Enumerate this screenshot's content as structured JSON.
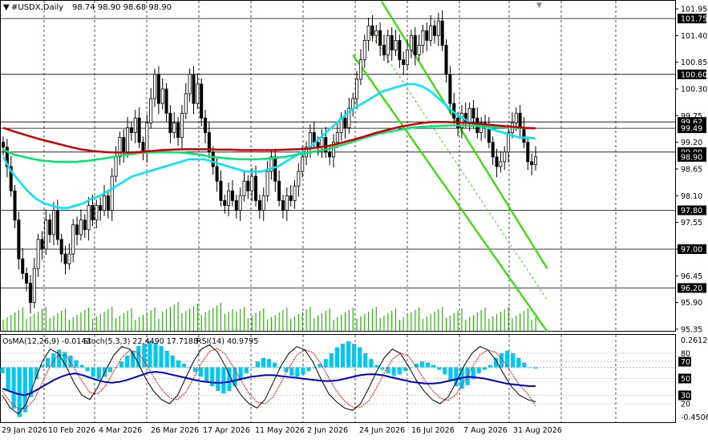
{
  "header": {
    "title": "#USDX,Daily",
    "ohlc": "98.74 98.90 98.68 98.90"
  },
  "indicator_header": {
    "osma": "OsMA(12,26,9) -0.0143",
    "stoch": "Stoch(5,3,3) 22.4490 17.7188",
    "rsi": "RSI(14) 40.9795"
  },
  "colors": {
    "background": "#ffffff",
    "bull_candle": "#000000",
    "bear_candle": "#000000",
    "ma_fast": "#00e5ff",
    "ma_mid": "#00e676",
    "ma_slow": "#cc0000",
    "channel": "#33dd00",
    "osma_hist": "#00c8f0",
    "rsi": "#0000cc",
    "stoch_main": "#000000",
    "stoch_signal": "#ff0000",
    "volume": "#22bb00",
    "level_line": "#000000",
    "price_tag": "#000000"
  },
  "chart_data": [
    {
      "type": "line",
      "title": "#USDX,Daily",
      "x_labels": [
        "29 Jan 2026",
        "10 Feb 2026",
        "4 Mar 2026",
        "26 Mar 2026",
        "17 Apr 2026",
        "11 May 2026",
        "2 Jun 2026",
        "24 Jun 2026",
        "16 Jul 2026",
        "7 Aug 2026",
        "31 Aug 2026"
      ],
      "y_ticks": [
        101.95,
        101.4,
        100.85,
        100.3,
        99.75,
        99.2,
        98.65,
        98.1,
        97.55,
        97.0,
        96.45,
        95.9,
        95.35
      ],
      "ylim": [
        95.35,
        101.95
      ],
      "level_lines": [
        101.75,
        100.6,
        99.62,
        99.49,
        99.0,
        97.8,
        97.0,
        96.2
      ],
      "price_labels": [
        {
          "value": 101.75,
          "text": "101.75"
        },
        {
          "value": 100.6,
          "text": "100.60"
        },
        {
          "value": 99.62,
          "text": "99.62"
        },
        {
          "value": 99.49,
          "text": "99.49"
        },
        {
          "value": 99.0,
          "text": "99.00"
        },
        {
          "value": 98.9,
          "text": "98.90"
        },
        {
          "value": 97.8,
          "text": "97.80"
        },
        {
          "value": 97.0,
          "text": "97.00"
        },
        {
          "value": 96.2,
          "text": "96.20"
        }
      ],
      "series": [
        {
          "type": "candlestick",
          "close": [
            99.1,
            98.7,
            98.2,
            97.6,
            96.8,
            96.5,
            96.3,
            95.9,
            96.6,
            97.2,
            97.0,
            97.6,
            97.3,
            97.8,
            97.2,
            96.9,
            96.7,
            96.9,
            97.5,
            97.3,
            97.6,
            97.4,
            97.9,
            97.6,
            97.9,
            97.8,
            98.1,
            97.8,
            98.5,
            98.9,
            99.3,
            99.0,
            99.5,
            99.4,
            99.7,
            99.2,
            99.0,
            99.6,
            100.1,
            100.6,
            100.0,
            100.3,
            99.8,
            99.4,
            99.6,
            99.3,
            99.8,
            100.2,
            100.6,
            100.0,
            100.4,
            99.7,
            99.4,
            99.0,
            98.7,
            98.4,
            98.0,
            97.9,
            98.2,
            98.0,
            97.8,
            98.1,
            98.4,
            98.2,
            98.5,
            98.0,
            97.8,
            98.1,
            98.6,
            98.9,
            98.4,
            98.0,
            97.8,
            98.1,
            98.0,
            98.3,
            98.6,
            98.9,
            99.1,
            99.4,
            99.2,
            99.1,
            99.3,
            99.0,
            98.9,
            99.2,
            99.4,
            99.7,
            99.5,
            99.9,
            100.1,
            100.5,
            100.9,
            101.3,
            101.6,
            101.4,
            101.5,
            101.2,
            101.0,
            101.4,
            101.1,
            101.3,
            100.9,
            100.8,
            101.1,
            101.4,
            101.0,
            101.2,
            101.5,
            101.3,
            101.6,
            101.4,
            101.7,
            101.2,
            100.6,
            100.0,
            99.7,
            99.5,
            99.8,
            99.6,
            99.9,
            99.7,
            99.4,
            99.6,
            99.5,
            99.2,
            98.9,
            98.7,
            98.8,
            99.0,
            99.4,
            99.6,
            99.8,
            99.5,
            99.2,
            98.8,
            98.74,
            98.9
          ]
        },
        {
          "name": "",
          "type": "ma",
          "values": [
            98.9,
            98.6,
            98.4,
            98.2,
            98.05,
            97.95,
            97.9,
            97.85,
            97.85,
            97.9,
            97.95,
            98.05,
            98.1,
            98.2,
            98.3,
            98.4,
            98.5,
            98.55,
            98.6,
            98.65,
            98.7,
            98.75,
            98.8,
            98.85,
            98.85,
            98.85,
            98.8,
            98.75,
            98.7,
            98.65,
            98.6,
            98.6,
            98.6,
            98.65,
            98.7,
            98.8,
            98.9,
            99.0,
            99.1,
            99.25,
            99.4,
            99.55,
            99.7,
            99.85,
            99.95,
            100.05,
            100.15,
            100.25,
            100.3,
            100.35,
            100.4,
            100.4,
            100.35,
            100.25,
            100.1,
            99.95,
            99.8,
            99.7,
            99.6,
            99.55,
            99.5,
            99.45,
            99.4,
            99.35,
            99.3,
            99.3,
            99.28
          ]
        },
        {
          "name": "",
          "type": "ma",
          "values": [
            99.05,
            98.95,
            98.9,
            98.85,
            98.82,
            98.8,
            98.8,
            98.8,
            98.82,
            98.85,
            98.88,
            98.92,
            98.95,
            98.98,
            98.99,
            99.0,
            99.0,
            98.99,
            98.97,
            98.94,
            98.9,
            98.88,
            98.86,
            98.85,
            98.85,
            98.86,
            98.88,
            98.9,
            98.94,
            98.98,
            99.02,
            99.06,
            99.12,
            99.18,
            99.25,
            99.32,
            99.38,
            99.42,
            99.46,
            99.5,
            99.52,
            99.53,
            99.54,
            99.55,
            99.55,
            99.54,
            99.53,
            99.52,
            99.51,
            99.5,
            99.49,
            99.49
          ]
        },
        {
          "name": "",
          "type": "ma",
          "values": [
            99.5,
            99.42,
            99.35,
            99.28,
            99.22,
            99.16,
            99.1,
            99.05,
            99.02,
            99.0,
            98.99,
            98.99,
            99.0,
            99.02,
            99.04,
            99.05,
            99.06,
            99.06,
            99.06,
            99.05,
            99.05,
            99.04,
            99.04,
            99.04,
            99.04,
            99.05,
            99.06,
            99.07,
            99.1,
            99.14,
            99.2,
            99.26,
            99.33,
            99.4,
            99.46,
            99.52,
            99.56,
            99.6,
            99.62,
            99.62,
            99.61,
            99.6,
            99.58,
            99.56,
            99.54,
            99.52,
            99.5,
            99.49
          ]
        }
      ],
      "channel": {
        "upper_start": [
          97.4,
          102.1
        ],
        "upper_end": [
          140,
          96.6
        ],
        "lower_start": [
          90.0,
          101.0
        ],
        "lower_end": [
          140,
          95.3
        ]
      }
    },
    {
      "type": "bar",
      "title": "OsMA(12,26,9) -0.0143",
      "range": [
        -0.4506,
        0.2612
      ],
      "tick_labels": [
        "0.2612",
        "-0.4506"
      ],
      "stoch_ticks": [
        "80",
        "70",
        "50",
        "30",
        "20"
      ],
      "values": [
        -0.05,
        -0.2,
        -0.35,
        -0.42,
        -0.38,
        -0.25,
        -0.1,
        0.02,
        0.08,
        0.12,
        0.15,
        0.13,
        0.1,
        0.06,
        0.02,
        -0.03,
        -0.08,
        -0.1,
        -0.08,
        -0.04,
        0.0,
        0.05,
        0.1,
        0.14,
        0.18,
        0.2,
        0.22,
        0.21,
        0.18,
        0.14,
        0.1,
        0.06,
        0.03,
        0.0,
        -0.04,
        -0.08,
        -0.12,
        -0.16,
        -0.2,
        -0.22,
        -0.2,
        -0.16,
        -0.1,
        -0.05,
        0.0,
        0.05,
        0.08,
        0.07,
        0.04,
        0.0,
        -0.04,
        -0.07,
        -0.08,
        -0.06,
        -0.03,
        0.0,
        0.03,
        0.07,
        0.12,
        0.17,
        0.2,
        0.22,
        0.2,
        0.17,
        0.12,
        0.07,
        0.02,
        -0.02,
        -0.05,
        -0.07,
        -0.06,
        -0.03,
        0.0,
        0.03,
        0.05,
        0.04,
        0.02,
        -0.02,
        -0.06,
        -0.12,
        -0.16,
        -0.18,
        -0.15,
        -0.1,
        -0.05,
        -0.02,
        0.02,
        0.08,
        0.12,
        0.14,
        0.12,
        0.08,
        0.04,
        0.0,
        -0.01
      ],
      "rsi": [
        38,
        35,
        32,
        30,
        33,
        38,
        43,
        48,
        52,
        55,
        56,
        54,
        51,
        48,
        46,
        45,
        46,
        48,
        51,
        54,
        57,
        58,
        57,
        55,
        53,
        51,
        49,
        47,
        46,
        45,
        45,
        46,
        48,
        50,
        52,
        53,
        54,
        54,
        53,
        52,
        51,
        50,
        49,
        48,
        47,
        47,
        48,
        50,
        52,
        54,
        55,
        55,
        54,
        52,
        50,
        48,
        46,
        45,
        44,
        44,
        45,
        47,
        49,
        51,
        52,
        51,
        50,
        48,
        46,
        44,
        43,
        42,
        41,
        40.98
      ],
      "stoch_main": [
        30,
        15,
        8,
        20,
        45,
        70,
        85,
        80,
        65,
        45,
        30,
        25,
        40,
        60,
        78,
        88,
        85,
        70,
        50,
        35,
        25,
        20,
        30,
        50,
        70,
        85,
        90,
        82,
        65,
        45,
        30,
        20,
        15,
        25,
        45,
        65,
        80,
        88,
        84,
        70,
        50,
        32,
        22,
        15,
        12,
        20,
        38,
        58,
        75,
        85,
        80,
        65,
        48,
        35,
        25,
        20,
        28,
        45,
        65,
        80,
        88,
        84,
        72,
        55,
        40,
        30,
        25,
        22.45
      ],
      "stoch_signal": [
        35,
        22,
        14,
        15,
        25,
        45,
        65,
        78,
        77,
        63,
        47,
        33,
        32,
        42,
        59,
        75,
        84,
        81,
        68,
        52,
        37,
        27,
        25,
        33,
        50,
        68,
        82,
        86,
        79,
        64,
        47,
        32,
        22,
        20,
        28,
        45,
        63,
        78,
        84,
        81,
        68,
        51,
        35,
        23,
        16,
        16,
        23,
        39,
        57,
        73,
        80,
        77,
        64,
        49,
        36,
        27,
        24,
        31,
        46,
        63,
        78,
        84,
        81,
        70,
        56,
        42,
        32,
        17.72
      ]
    }
  ]
}
